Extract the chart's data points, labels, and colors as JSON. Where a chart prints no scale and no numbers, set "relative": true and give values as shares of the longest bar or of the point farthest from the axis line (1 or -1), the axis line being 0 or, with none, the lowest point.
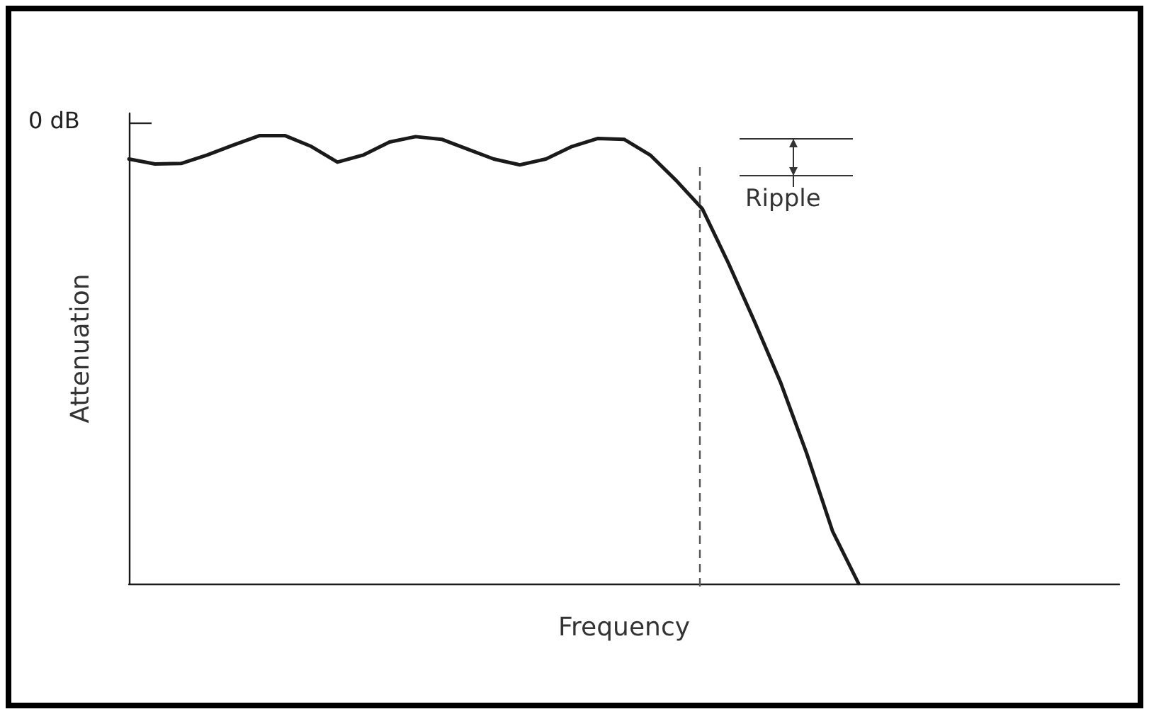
{
  "chart_data": {
    "type": "line",
    "relative": true,
    "xlabel": "Frequency",
    "ylabel": "Attenuation",
    "grid": false,
    "marker": "none",
    "line_style": "solid",
    "categories": [
      null,
      null,
      null,
      null,
      null,
      null,
      null,
      null,
      null,
      null,
      null,
      null,
      null,
      null,
      null,
      null,
      null,
      null,
      null,
      null,
      null,
      null,
      null,
      null,
      null,
      null,
      null,
      null,
      null,
      null,
      null,
      null,
      null,
      null,
      null,
      null,
      null,
      null,
      null
    ],
    "series": [
      {
        "color": "#1a1a1a",
        "values": [
          0.948,
          0.937,
          0.938,
          0.957,
          0.979,
          1,
          1,
          0.976,
          0.941,
          0.957,
          0.986,
          0.998,
          0.992,
          0.97,
          0.948,
          0.935,
          0.948,
          0.976,
          0.994,
          0.992,
          0.957,
          0.9,
          0.837,
          0.716,
          0.586,
          0.45,
          0.292,
          0.117,
          0,
          null,
          null,
          null,
          null,
          null,
          null,
          null,
          null,
          null,
          null
        ]
      }
    ],
    "annotations": [
      "0 dB",
      "Ripple"
    ]
  }
}
